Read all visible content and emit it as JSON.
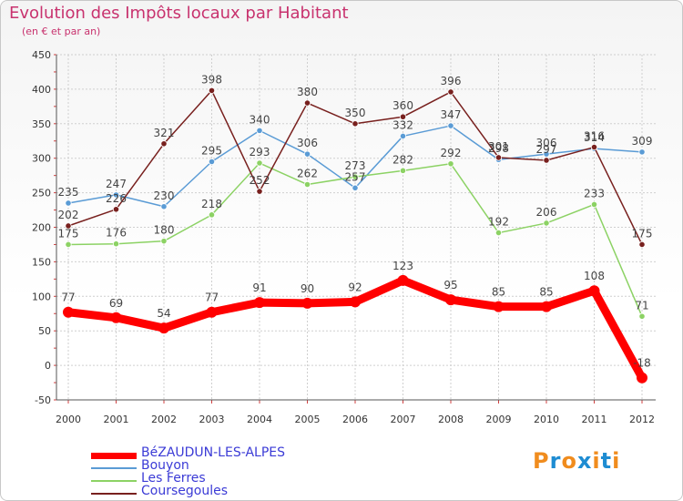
{
  "title": "Evolution des Impôts locaux par Habitant",
  "subtitle": "(en € et par an)",
  "logo": {
    "text": "Proxiti",
    "colors": [
      "#f08c1e",
      "#1e8cd2",
      "#f08c1e",
      "#1e8cd2",
      "#f08c1e",
      "#1e8cd2",
      "#f08c1e"
    ]
  },
  "chart_data": {
    "type": "line",
    "title": "Evolution des Impôts locaux par Habitant",
    "subtitle": "(en € et par an)",
    "categories": [
      "2000",
      "2001",
      "2002",
      "2003",
      "2004",
      "2005",
      "2006",
      "2007",
      "2008",
      "2009",
      "2010",
      "2011",
      "2012"
    ],
    "ylim": [
      -50,
      450
    ],
    "yticks": [
      "-50",
      "0",
      "50",
      "100",
      "150",
      "200",
      "250",
      "300",
      "350",
      "400",
      "450"
    ],
    "grid": true,
    "legend_position": "bottom-left",
    "series": [
      {
        "name": "BéZAUDUN-LES-ALPES",
        "color": "#ff0000",
        "thick": true,
        "values": [
          77,
          69,
          54,
          77,
          91,
          90,
          92,
          123,
          95,
          85,
          85,
          108,
          -18
        ],
        "labels": [
          "77",
          "69",
          "54",
          "77",
          "91",
          "90",
          "92",
          "123",
          "95",
          "85",
          "85",
          "108",
          "-18"
        ]
      },
      {
        "name": "Bouyon",
        "color": "#5a9bd5",
        "thick": false,
        "values": [
          235,
          247,
          230,
          295,
          340,
          306,
          257,
          332,
          347,
          298,
          306,
          314,
          309
        ],
        "labels": [
          "235",
          "247",
          "230",
          "295",
          "340",
          "306",
          "257",
          "332",
          "347",
          "298",
          "306",
          "314",
          "309"
        ]
      },
      {
        "name": "Les Ferres",
        "color": "#8cd264",
        "thick": false,
        "values": [
          175,
          176,
          180,
          218,
          293,
          262,
          273,
          282,
          292,
          192,
          206,
          233,
          71
        ],
        "labels": [
          "175",
          "176",
          "180",
          "218",
          "293",
          "262",
          "273",
          "282",
          "292",
          "192",
          "206",
          "233",
          "71"
        ]
      },
      {
        "name": "Coursegoules",
        "color": "#78201e",
        "thick": false,
        "values": [
          202,
          226,
          321,
          398,
          252,
          380,
          350,
          360,
          396,
          301,
          297,
          316,
          175
        ],
        "labels": [
          "202",
          "226",
          "321",
          "398",
          "252",
          "380",
          "350",
          "360",
          "396",
          "301",
          "297",
          "316",
          "175"
        ]
      }
    ]
  }
}
